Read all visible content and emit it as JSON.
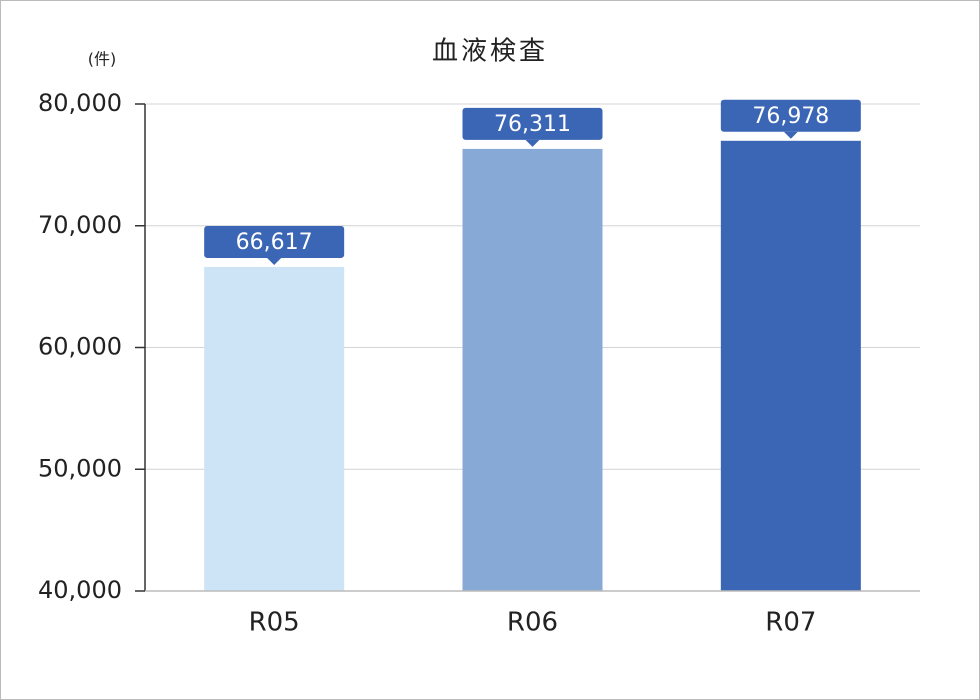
{
  "chart_data": {
    "type": "bar",
    "title": "血液検査",
    "y_unit": "(件)",
    "categories": [
      "R05",
      "R06",
      "R07"
    ],
    "values": [
      66617,
      76311,
      76978
    ],
    "value_labels": [
      "66,617",
      "76,311",
      "76,978"
    ],
    "colors": [
      "#cce4f5",
      "#87a9d6",
      "#3a66b5"
    ],
    "label_color": "#3a66b5",
    "ylim": [
      40000,
      80000
    ],
    "yticks": [
      {
        "value": 40000,
        "label": "40,000"
      },
      {
        "value": 50000,
        "label": "50,000"
      },
      {
        "value": 60000,
        "label": "60,000"
      },
      {
        "value": 70000,
        "label": "70,000"
      },
      {
        "value": 80000,
        "label": "80,000"
      }
    ],
    "grid": true
  }
}
